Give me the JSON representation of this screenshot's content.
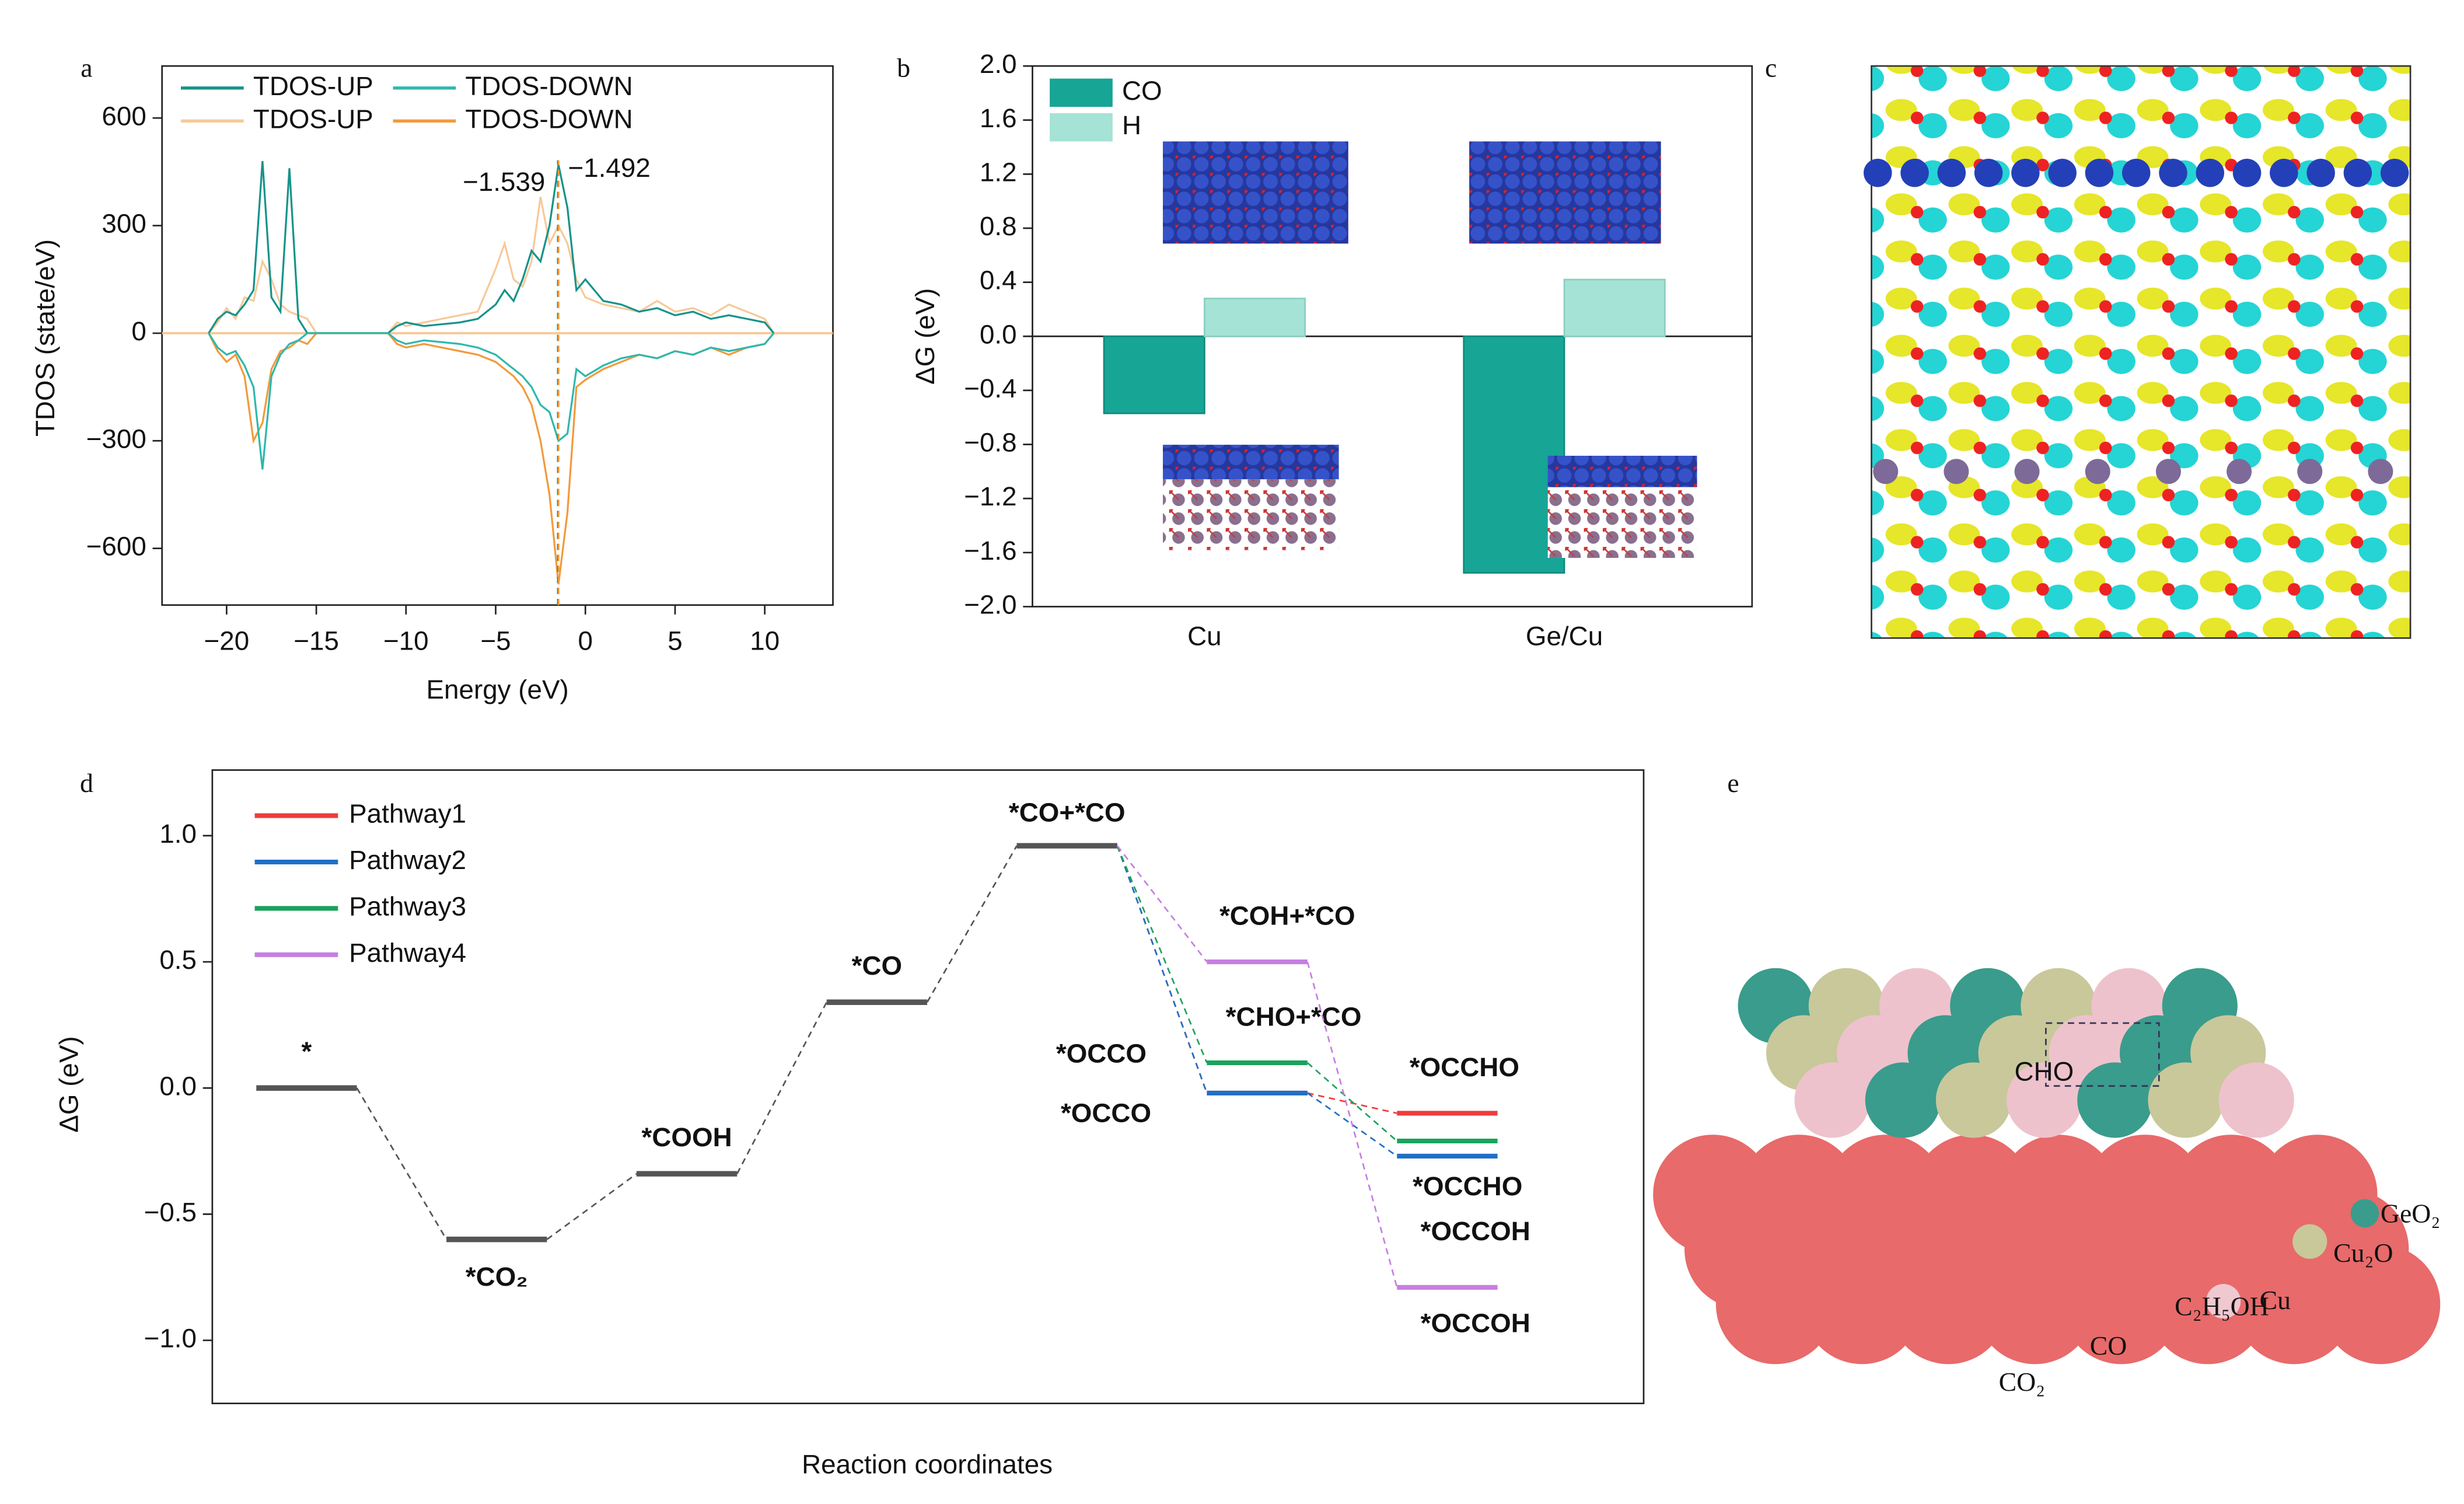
{
  "panel_labels": [
    "a",
    "b",
    "c",
    "d",
    "e"
  ],
  "chart_data": [
    {
      "type": "line",
      "xlabel": "Energy (eV)",
      "ylabel": "TDOS (state/eV)",
      "xlim": [
        -23.6,
        13.8
      ],
      "ylim": [
        -758,
        745
      ],
      "xticks": [
        {
          "value": -20,
          "label": "−20"
        },
        {
          "value": -15,
          "label": "−15"
        },
        {
          "value": -10,
          "label": "−10"
        },
        {
          "value": -5,
          "label": "−5"
        },
        0,
        5,
        10
      ],
      "yticks": [
        600,
        300,
        0,
        {
          "value": -300,
          "label": "−300"
        },
        {
          "value": -600,
          "label": "−600"
        }
      ],
      "x": [
        -21,
        -20.5,
        -20,
        -19.5,
        -19,
        -18.5,
        -18,
        -17.5,
        -17,
        -16.5,
        -16,
        -15.5,
        -15,
        -11,
        -10.5,
        -10,
        -9,
        -8,
        -7,
        -6,
        -5,
        -4.5,
        -4,
        -3.5,
        -3,
        -2.5,
        -2,
        -1.5,
        -1,
        -0.5,
        0,
        1,
        2,
        3,
        4,
        5,
        6,
        7,
        8,
        9,
        10,
        10.5
      ],
      "series": [
        {
          "name": "TDOS-UP",
          "color": "#f7c99a",
          "values": [
            0,
            30,
            70,
            40,
            100,
            90,
            200,
            150,
            80,
            60,
            50,
            40,
            0,
            0,
            30,
            20,
            30,
            40,
            50,
            60,
            180,
            250,
            150,
            130,
            200,
            380,
            250,
            300,
            250,
            150,
            100,
            80,
            70,
            60,
            90,
            60,
            70,
            50,
            80,
            60,
            40,
            0
          ]
        },
        {
          "name": "TDOS-DOWN",
          "color": "#f39a3c",
          "values": [
            0,
            -50,
            -80,
            -60,
            -120,
            -300,
            -250,
            -100,
            -50,
            -40,
            -20,
            -30,
            0,
            0,
            -30,
            -40,
            -30,
            -40,
            -50,
            -60,
            -80,
            -100,
            -120,
            -150,
            -200,
            -300,
            -450,
            -700,
            -500,
            -150,
            -130,
            -100,
            -80,
            -60,
            -70,
            -50,
            -60,
            -40,
            -60,
            -40,
            -30,
            0
          ]
        },
        {
          "name": "TDOS-UP",
          "color": "#16938a",
          "values": [
            0,
            40,
            60,
            50,
            80,
            120,
            480,
            100,
            60,
            460,
            40,
            0,
            0,
            0,
            20,
            30,
            20,
            25,
            30,
            40,
            80,
            120,
            90,
            150,
            230,
            200,
            300,
            470,
            350,
            120,
            150,
            90,
            80,
            60,
            70,
            50,
            60,
            40,
            50,
            40,
            30,
            0
          ]
        },
        {
          "name": "TDOS-DOWN",
          "color": "#2fb8ad",
          "values": [
            0,
            -40,
            -60,
            -50,
            -90,
            -150,
            -380,
            -120,
            -60,
            -30,
            -20,
            0,
            0,
            0,
            -20,
            -30,
            -20,
            -25,
            -30,
            -40,
            -60,
            -80,
            -100,
            -120,
            -150,
            -200,
            -220,
            -300,
            -280,
            -100,
            -120,
            -90,
            -70,
            -60,
            -70,
            -50,
            -60,
            -40,
            -50,
            -40,
            -30,
            0
          ]
        }
      ],
      "annotations": [
        {
          "value": -1.539,
          "label": "−1.539"
        },
        {
          "value": -1.492,
          "label": "−1.492"
        }
      ]
    },
    {
      "type": "bar",
      "ylabel": "ΔG (eV)",
      "categories": [
        "Cu",
        "Ge/Cu"
      ],
      "ylim": [
        -2.0,
        2.0
      ],
      "yticks": [
        {
          "value": 2,
          "label": "2.0"
        },
        {
          "value": 1.6,
          "label": "1.6"
        },
        {
          "value": 1.2,
          "label": "1.2"
        },
        {
          "value": 0.8,
          "label": "0.8"
        },
        {
          "value": 0.4,
          "label": "0.4"
        },
        {
          "value": 0,
          "label": "0.0"
        },
        {
          "value": -0.4,
          "label": "−0.4"
        },
        {
          "value": -0.8,
          "label": "−0.8"
        },
        {
          "value": -1.2,
          "label": "−1.2"
        },
        {
          "value": -1.6,
          "label": "−1.6"
        },
        {
          "value": -2,
          "label": "−2.0"
        }
      ],
      "series": [
        {
          "name": "CO",
          "color": "#17a596",
          "values": [
            -0.57,
            -1.75
          ]
        },
        {
          "name": "H",
          "color": "#a4e3d6",
          "values": [
            0.28,
            0.42
          ]
        }
      ]
    },
    {
      "type": "energy",
      "ylabel": "ΔG (eV)",
      "xlabel": "Reaction coordinates",
      "ylim": [
        -1.25,
        1.26
      ],
      "yticks": [
        {
          "value": 1,
          "label": "1.0"
        },
        {
          "value": 0.5,
          "label": "0.5"
        },
        {
          "value": 0,
          "label": "0.0"
        },
        {
          "value": -0.5,
          "label": "−0.5"
        },
        {
          "value": -1,
          "label": "−1.0"
        }
      ],
      "common_color": "#555555",
      "common_levels": {
        "labels": [
          "*",
          "*CO₂",
          "*COOH",
          "*CO",
          "*CO+*CO"
        ],
        "values": [
          0,
          -0.6,
          -0.34,
          0.34,
          0.96
        ]
      },
      "series": [
        {
          "name": "Pathway1",
          "color": "#f03c3c",
          "labels": [
            "*OCCO",
            "*OCCHO"
          ],
          "values": [
            -0.02,
            -0.1
          ]
        },
        {
          "name": "Pathway2",
          "color": "#1f6fc6",
          "labels": [
            "*OCCO",
            "*OCCOH"
          ],
          "values": [
            -0.02,
            -0.27
          ]
        },
        {
          "name": "Pathway3",
          "color": "#1aa35c",
          "labels": [
            "*CHO+*CO",
            "*OCCHO"
          ],
          "values": [
            0.1,
            -0.21
          ]
        },
        {
          "name": "Pathway4",
          "color": "#c77ee0",
          "labels": [
            "*COH+*CO",
            "*OCCOH"
          ],
          "values": [
            0.5,
            -0.79
          ]
        }
      ]
    }
  ],
  "panel_e": {
    "labels": [
      "CHO",
      "GeO₂",
      "Cu₂O",
      "Cu",
      "C₂H₅OH",
      "CO",
      "CO₂"
    ]
  }
}
